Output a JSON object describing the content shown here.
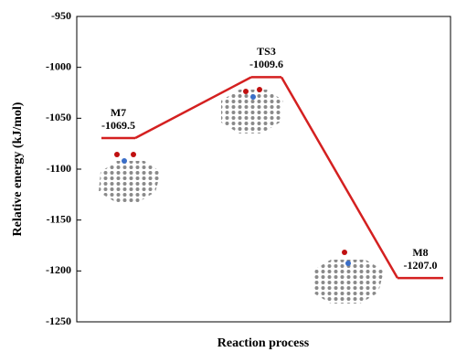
{
  "chart_data": {
    "type": "energy-profile",
    "y_label": "Relative energy (kJ/mol)",
    "x_label": "Reaction process",
    "categories": [
      "M7",
      "TS3",
      "M8"
    ],
    "values": [
      -1069.5,
      -1009.6,
      -1207.0
    ],
    "value_labels": [
      "-1069.5",
      "-1009.6",
      "-1207.0"
    ],
    "color": "#d42020",
    "ylim": [
      -1250,
      -950
    ],
    "yticks": [
      -1250,
      -1200,
      -1150,
      -1100,
      -1050,
      -1000,
      -950
    ]
  }
}
